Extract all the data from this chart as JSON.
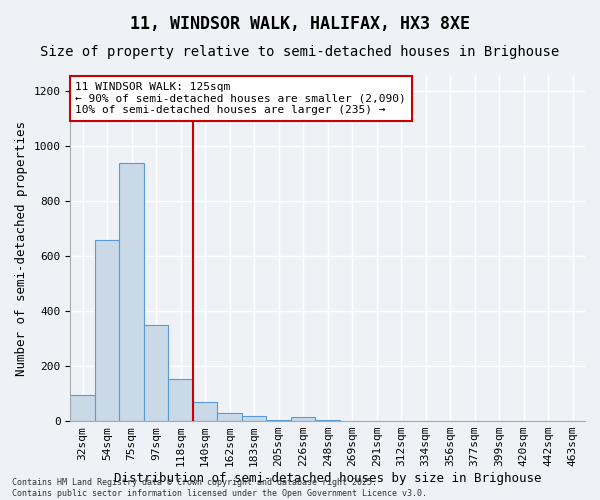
{
  "title": "11, WINDSOR WALK, HALIFAX, HX3 8XE",
  "subtitle": "Size of property relative to semi-detached houses in Brighouse",
  "xlabel": "Distribution of semi-detached houses by size in Brighouse",
  "ylabel": "Number of semi-detached properties",
  "footnote": "Contains HM Land Registry data © Crown copyright and database right 2025.\nContains public sector information licensed under the Open Government Licence v3.0.",
  "bins": [
    "32sqm",
    "54sqm",
    "75sqm",
    "97sqm",
    "118sqm",
    "140sqm",
    "162sqm",
    "183sqm",
    "205sqm",
    "226sqm",
    "248sqm",
    "269sqm",
    "291sqm",
    "312sqm",
    "334sqm",
    "356sqm",
    "377sqm",
    "399sqm",
    "420sqm",
    "442sqm",
    "463sqm"
  ],
  "values": [
    95,
    660,
    940,
    350,
    155,
    70,
    30,
    20,
    5,
    15,
    5,
    0,
    0,
    0,
    0,
    0,
    0,
    0,
    0,
    0,
    0
  ],
  "bar_color": "#c9d9e8",
  "bar_edge_color": "#5b9bd5",
  "vline_x": 4.5,
  "vline_color": "#cc0000",
  "annotation_text": "11 WINDSOR WALK: 125sqm\n← 90% of semi-detached houses are smaller (2,090)\n10% of semi-detached houses are larger (235) →",
  "annotation_box_color": "#ffffff",
  "annotation_box_edge": "#cc0000",
  "ylim": [
    0,
    1260
  ],
  "yticks": [
    0,
    200,
    400,
    600,
    800,
    1000,
    1200
  ],
  "bg_color": "#eef2f7",
  "plot_bg_color": "#eef2f7",
  "grid_color": "#ffffff",
  "title_fontsize": 12,
  "subtitle_fontsize": 10,
  "label_fontsize": 9,
  "tick_fontsize": 8
}
